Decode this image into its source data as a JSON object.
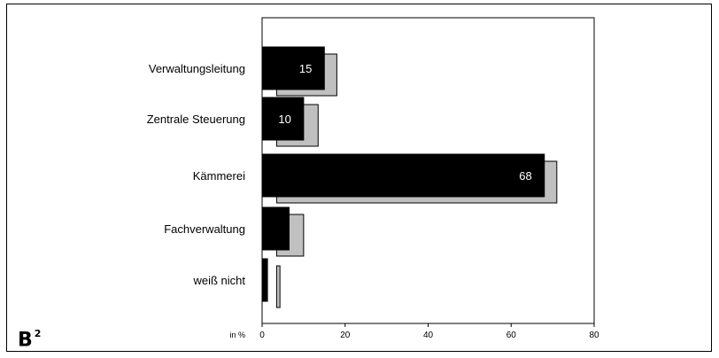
{
  "panel": {
    "letter": "B",
    "superscript": "2"
  },
  "chart_data": {
    "type": "bar",
    "orientation": "horizontal",
    "categories": [
      "Verwaltungsleitung",
      "Zentrale Steuerung",
      "Kämmerei",
      "Fachverwaltung",
      "weiß nicht"
    ],
    "series": [
      {
        "values": [
          15,
          10,
          68,
          6.5,
          1.3
        ],
        "data_labels": [
          "15",
          "10",
          "68",
          "",
          ""
        ],
        "color": "#000000"
      },
      {
        "values": [
          18,
          13.5,
          71,
          10,
          4.3
        ],
        "offset_start": 3.5,
        "color": "#c0c0c0"
      }
    ],
    "xlabel": "in %",
    "xlim": [
      0,
      80
    ],
    "xticks": [
      0,
      20,
      40,
      60,
      80
    ],
    "grid": false
  }
}
